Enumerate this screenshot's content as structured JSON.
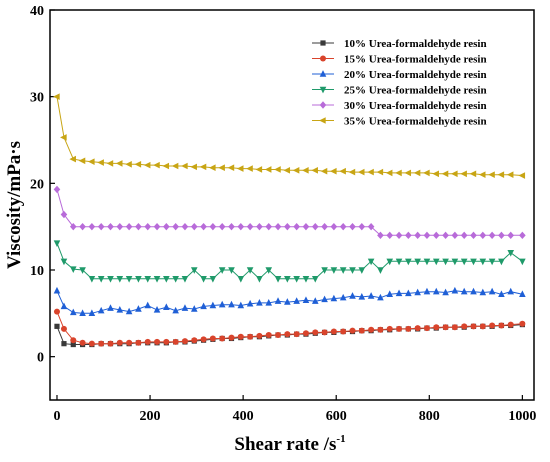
{
  "chart_data": {
    "type": "line",
    "xlabel": "Shear rate /s",
    "xlabel_sup": "-1",
    "ylabel": "Viscosity/mPa·s",
    "xlim": [
      -15,
      1025
    ],
    "ylim": [
      -5,
      40
    ],
    "xticks": [
      0,
      200,
      400,
      600,
      800,
      1000
    ],
    "yticks": [
      0,
      10,
      20,
      30,
      40
    ],
    "xtick_labels": [
      "0",
      "200",
      "400",
      "600",
      "800",
      "1000"
    ],
    "ytick_labels": [
      "0",
      "10",
      "20",
      "30",
      "40"
    ],
    "grid": false,
    "legend_position": "top-right",
    "x": [
      0,
      15,
      35,
      55,
      75,
      95,
      115,
      135,
      155,
      175,
      195,
      215,
      235,
      255,
      275,
      295,
      315,
      335,
      355,
      375,
      395,
      415,
      435,
      455,
      475,
      495,
      515,
      535,
      555,
      575,
      595,
      615,
      635,
      655,
      675,
      695,
      715,
      735,
      755,
      775,
      795,
      815,
      835,
      855,
      875,
      895,
      915,
      935,
      955,
      975,
      1000
    ],
    "series": [
      {
        "name": "10% Urea-formaldehyde resin",
        "color": "#3a3a3a",
        "marker": "square",
        "values": [
          3.5,
          1.5,
          1.4,
          1.4,
          1.4,
          1.5,
          1.5,
          1.5,
          1.5,
          1.6,
          1.6,
          1.6,
          1.6,
          1.7,
          1.7,
          1.8,
          1.9,
          2.0,
          2.1,
          2.1,
          2.2,
          2.3,
          2.3,
          2.4,
          2.5,
          2.5,
          2.6,
          2.6,
          2.7,
          2.8,
          2.8,
          2.9,
          2.9,
          3.0,
          3.0,
          3.1,
          3.1,
          3.2,
          3.2,
          3.2,
          3.3,
          3.3,
          3.4,
          3.4,
          3.4,
          3.5,
          3.5,
          3.5,
          3.6,
          3.6,
          3.7
        ]
      },
      {
        "name": "15% Urea-formaldehyde resin",
        "color": "#d9442c",
        "marker": "circle",
        "values": [
          5.2,
          3.2,
          1.9,
          1.6,
          1.5,
          1.5,
          1.5,
          1.6,
          1.6,
          1.6,
          1.7,
          1.7,
          1.7,
          1.7,
          1.8,
          1.9,
          2.0,
          2.1,
          2.1,
          2.2,
          2.3,
          2.3,
          2.4,
          2.5,
          2.5,
          2.6,
          2.6,
          2.7,
          2.8,
          2.8,
          2.9,
          2.9,
          3.0,
          3.0,
          3.1,
          3.1,
          3.2,
          3.2,
          3.2,
          3.3,
          3.3,
          3.4,
          3.4,
          3.4,
          3.5,
          3.5,
          3.5,
          3.6,
          3.6,
          3.7,
          3.8
        ]
      },
      {
        "name": "20% Urea-formaldehyde resin",
        "color": "#1f5fd6",
        "marker": "triangle-up",
        "values": [
          7.6,
          5.8,
          5.1,
          5.0,
          5.0,
          5.3,
          5.6,
          5.4,
          5.2,
          5.5,
          5.9,
          5.4,
          5.7,
          5.3,
          5.6,
          5.5,
          5.8,
          5.9,
          6.0,
          6.0,
          5.9,
          6.1,
          6.2,
          6.2,
          6.4,
          6.3,
          6.4,
          6.5,
          6.4,
          6.6,
          6.7,
          6.8,
          7.0,
          6.9,
          7.0,
          6.8,
          7.2,
          7.3,
          7.3,
          7.4,
          7.5,
          7.5,
          7.4,
          7.6,
          7.5,
          7.5,
          7.4,
          7.5,
          7.2,
          7.5,
          7.2
        ]
      },
      {
        "name": "25% Urea-formaldehyde resin",
        "color": "#1f9a6a",
        "marker": "triangle-down",
        "values": [
          13.1,
          11.0,
          10.1,
          10.0,
          9.0,
          9.0,
          9.0,
          9.0,
          9.0,
          9.0,
          9.0,
          9.0,
          9.0,
          9.0,
          9.0,
          10.0,
          9.0,
          9.0,
          10.0,
          10.0,
          9.0,
          10.0,
          9.0,
          10.0,
          9.0,
          9.0,
          9.0,
          9.0,
          9.0,
          10.0,
          10.0,
          10.0,
          10.0,
          10.0,
          11.0,
          10.0,
          11.0,
          11.0,
          11.0,
          11.0,
          11.0,
          11.0,
          11.0,
          11.0,
          11.0,
          11.0,
          11.0,
          11.0,
          11.0,
          12.0,
          11.0
        ]
      },
      {
        "name": "30% Urea-formaldehyde resin",
        "color": "#b86bd9",
        "marker": "diamond",
        "values": [
          19.3,
          16.4,
          15.0,
          15.0,
          15.0,
          15.0,
          15.0,
          15.0,
          15.0,
          15.0,
          15.0,
          15.0,
          15.0,
          15.0,
          15.0,
          15.0,
          15.0,
          15.0,
          15.0,
          15.0,
          15.0,
          15.0,
          15.0,
          15.0,
          15.0,
          15.0,
          15.0,
          15.0,
          15.0,
          15.0,
          15.0,
          15.0,
          15.0,
          15.0,
          15.0,
          14.0,
          14.0,
          14.0,
          14.0,
          14.0,
          14.0,
          14.0,
          14.0,
          14.0,
          14.0,
          14.0,
          14.0,
          14.0,
          14.0,
          14.0,
          14.0
        ]
      },
      {
        "name": "35% Urea-formaldehyde resin",
        "color": "#c8a514",
        "marker": "triangle-left",
        "values": [
          30.0,
          25.3,
          22.8,
          22.6,
          22.5,
          22.4,
          22.3,
          22.3,
          22.2,
          22.2,
          22.1,
          22.1,
          22.0,
          22.0,
          22.0,
          21.9,
          21.9,
          21.8,
          21.8,
          21.8,
          21.7,
          21.7,
          21.6,
          21.6,
          21.6,
          21.5,
          21.5,
          21.5,
          21.5,
          21.4,
          21.4,
          21.4,
          21.3,
          21.3,
          21.3,
          21.3,
          21.2,
          21.2,
          21.2,
          21.2,
          21.2,
          21.1,
          21.1,
          21.1,
          21.1,
          21.1,
          21.0,
          21.0,
          21.0,
          21.0,
          20.9
        ]
      }
    ]
  }
}
